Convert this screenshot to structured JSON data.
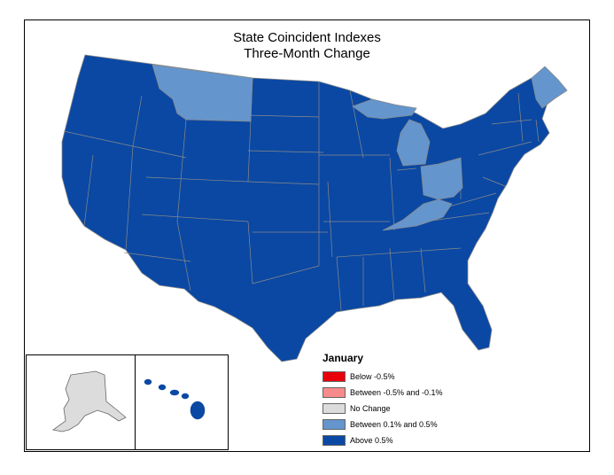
{
  "title": {
    "line1": "State Coincident Indexes",
    "line2": "Three-Month Change"
  },
  "legend": {
    "title": "January",
    "items": [
      {
        "label": "Below -0.5%",
        "color": "#e8000b"
      },
      {
        "label": "Between -0.5% and -0.1%",
        "color": "#f78a8a"
      },
      {
        "label": "No Change",
        "color": "#dcdcdc"
      },
      {
        "label": "Between 0.1% and 0.5%",
        "color": "#6495cd"
      },
      {
        "label": "Above 0.5%",
        "color": "#0a48a3"
      }
    ]
  },
  "colors": {
    "above_0_5": "#0a48a3",
    "between_0_1_0_5": "#6495cd",
    "no_change": "#dcdcdc",
    "border": "#8a8a8a"
  },
  "states_between_0_1_and_0_5": [
    "Montana",
    "Michigan",
    "Ohio",
    "Kentucky",
    "Maine"
  ],
  "states_no_change": [
    "Alaska"
  ],
  "states_above_0_5_note": "All other states including Hawaii"
}
